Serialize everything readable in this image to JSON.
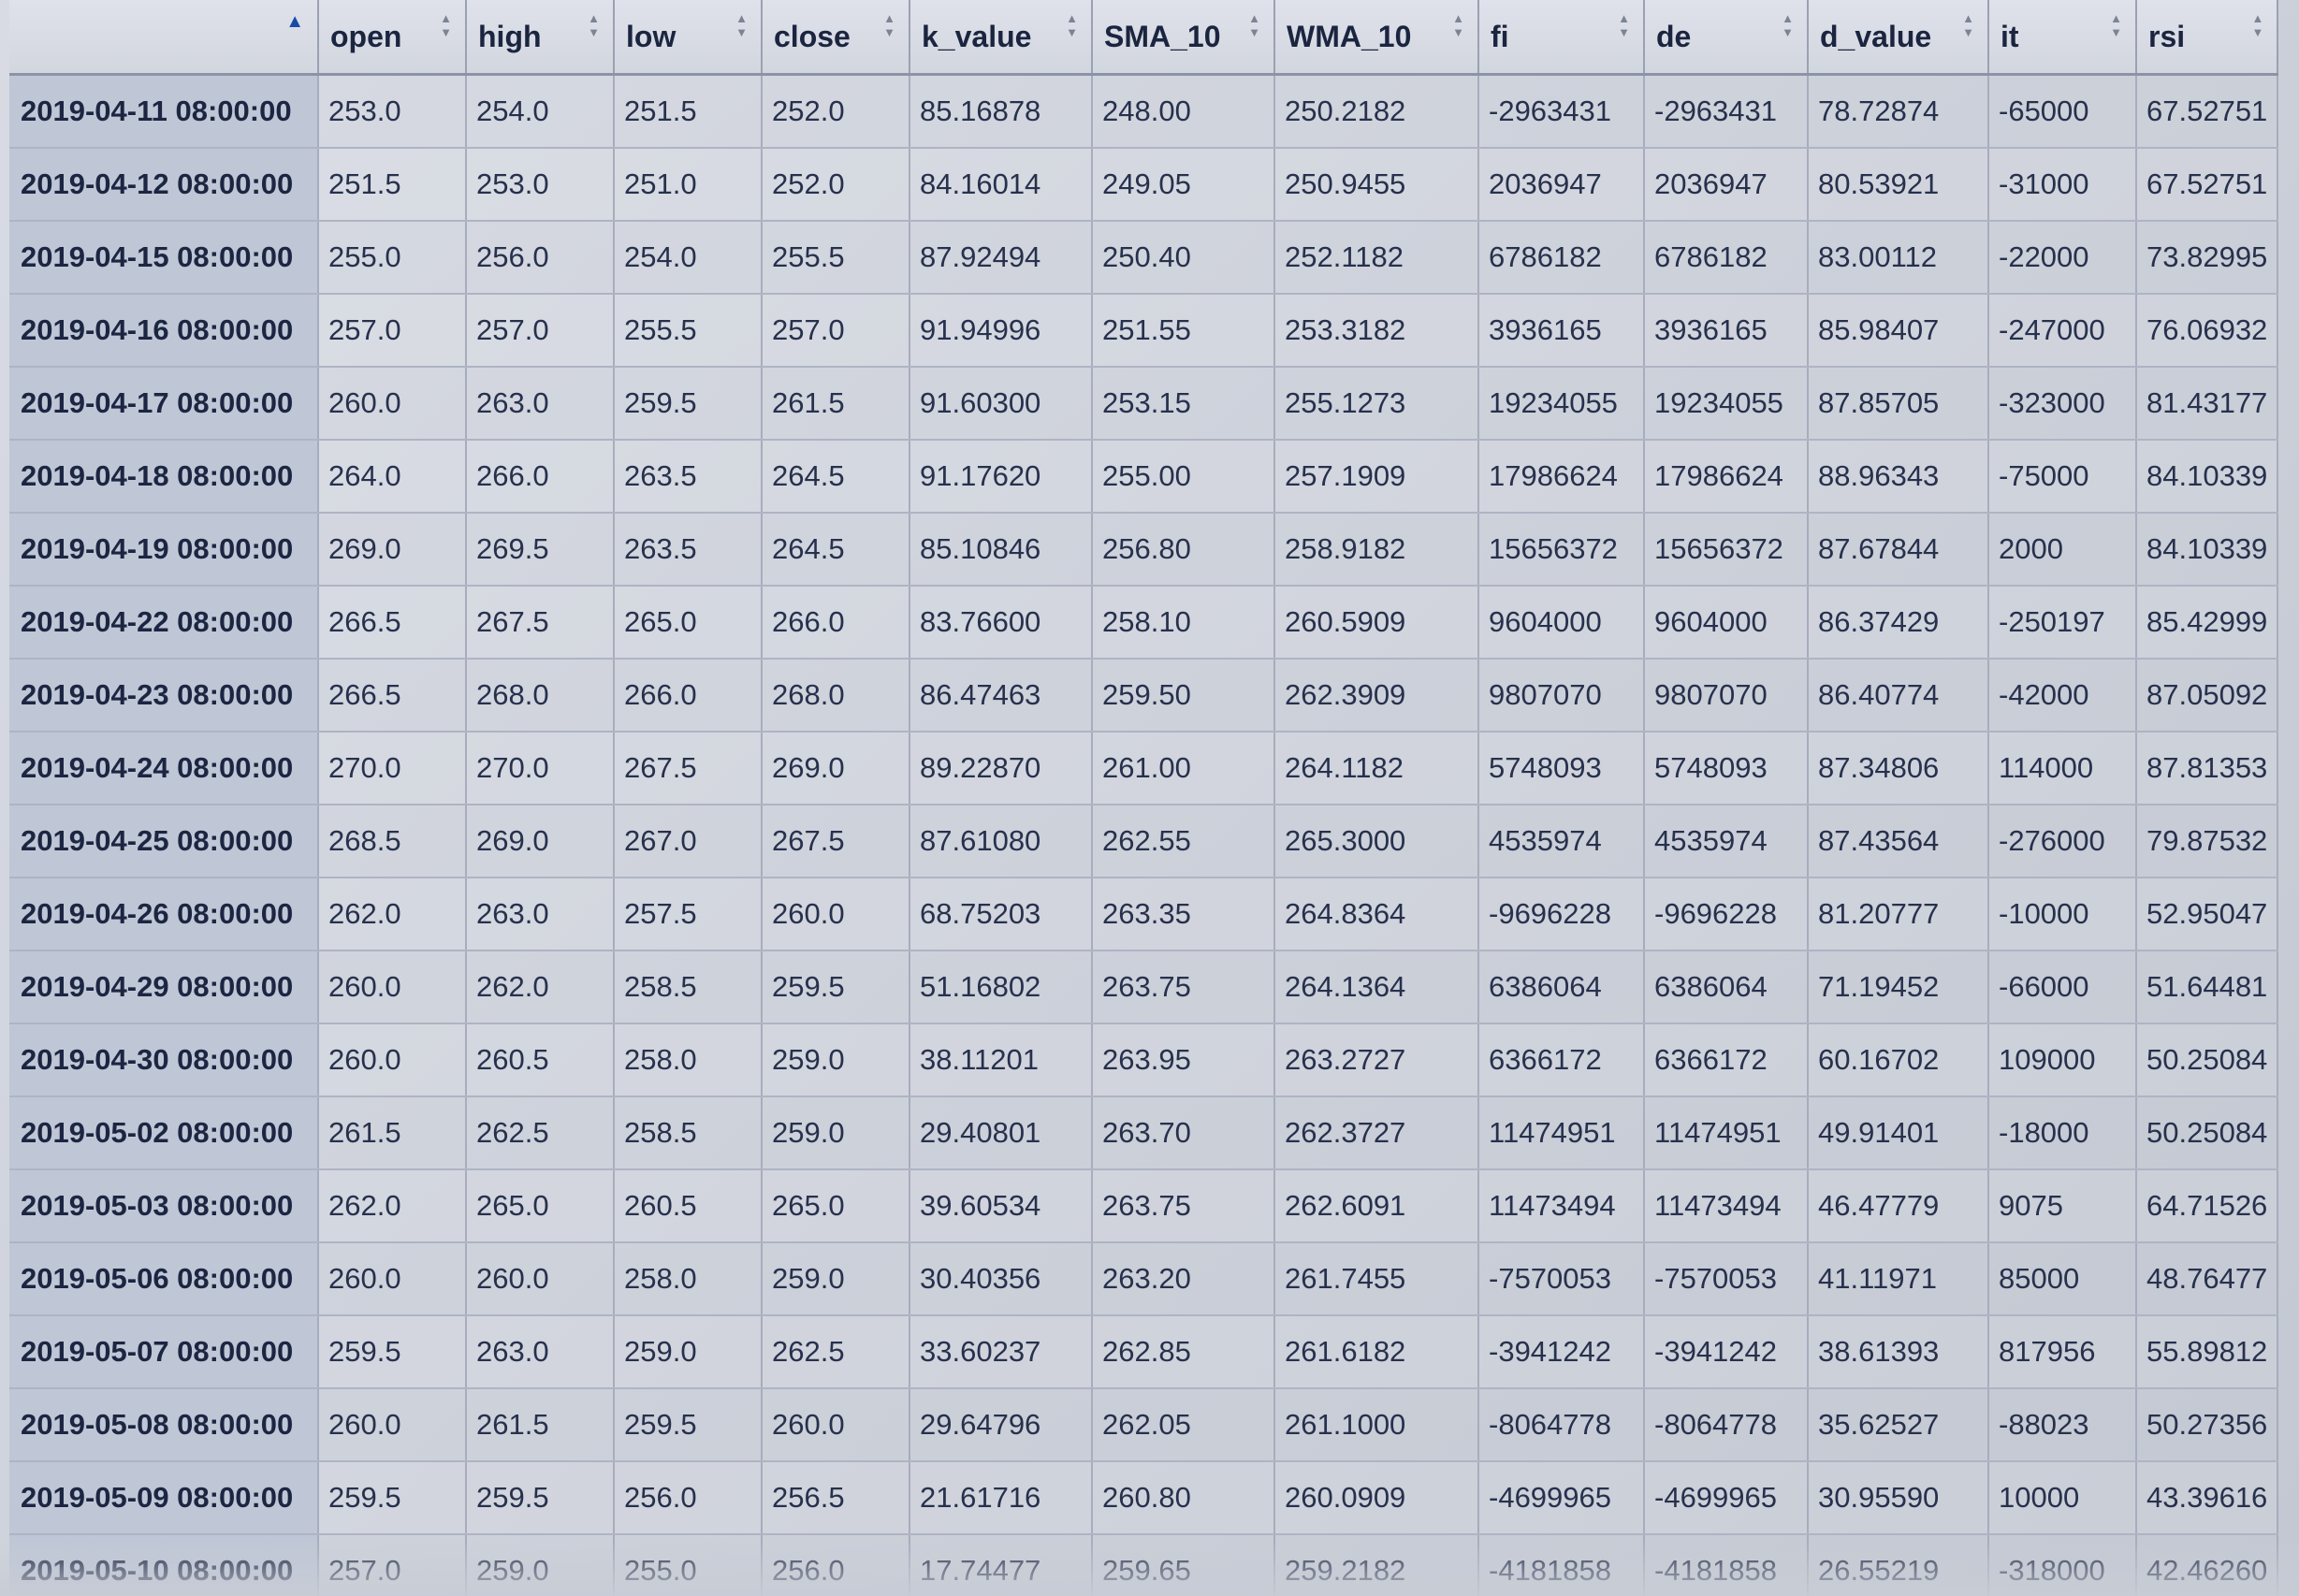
{
  "table": {
    "columns": [
      {
        "key": "date",
        "label": "",
        "sort": "asc"
      },
      {
        "key": "open",
        "label": "open",
        "sort": "none"
      },
      {
        "key": "high",
        "label": "high",
        "sort": "none"
      },
      {
        "key": "low",
        "label": "low",
        "sort": "none"
      },
      {
        "key": "close",
        "label": "close",
        "sort": "none"
      },
      {
        "key": "k_value",
        "label": "k_value",
        "sort": "none"
      },
      {
        "key": "SMA_10",
        "label": "SMA_10",
        "sort": "none"
      },
      {
        "key": "WMA_10",
        "label": "WMA_10",
        "sort": "none"
      },
      {
        "key": "fi",
        "label": "fi",
        "sort": "none"
      },
      {
        "key": "de",
        "label": "de",
        "sort": "none"
      },
      {
        "key": "d_value",
        "label": "d_value",
        "sort": "none"
      },
      {
        "key": "it",
        "label": "it",
        "sort": "none"
      },
      {
        "key": "rsi",
        "label": "rsi",
        "sort": "none"
      }
    ],
    "rows": [
      [
        "2019-04-11 08:00:00",
        "253.0",
        "254.0",
        "251.5",
        "252.0",
        "85.16878",
        "248.00",
        "250.2182",
        "-2963431",
        "-2963431",
        "78.72874",
        "-65000",
        "67.52751"
      ],
      [
        "2019-04-12 08:00:00",
        "251.5",
        "253.0",
        "251.0",
        "252.0",
        "84.16014",
        "249.05",
        "250.9455",
        "2036947",
        "2036947",
        "80.53921",
        "-31000",
        "67.52751"
      ],
      [
        "2019-04-15 08:00:00",
        "255.0",
        "256.0",
        "254.0",
        "255.5",
        "87.92494",
        "250.40",
        "252.1182",
        "6786182",
        "6786182",
        "83.00112",
        "-22000",
        "73.82995"
      ],
      [
        "2019-04-16 08:00:00",
        "257.0",
        "257.0",
        "255.5",
        "257.0",
        "91.94996",
        "251.55",
        "253.3182",
        "3936165",
        "3936165",
        "85.98407",
        "-247000",
        "76.06932"
      ],
      [
        "2019-04-17 08:00:00",
        "260.0",
        "263.0",
        "259.5",
        "261.5",
        "91.60300",
        "253.15",
        "255.1273",
        "19234055",
        "19234055",
        "87.85705",
        "-323000",
        "81.43177"
      ],
      [
        "2019-04-18 08:00:00",
        "264.0",
        "266.0",
        "263.5",
        "264.5",
        "91.17620",
        "255.00",
        "257.1909",
        "17986624",
        "17986624",
        "88.96343",
        "-75000",
        "84.10339"
      ],
      [
        "2019-04-19 08:00:00",
        "269.0",
        "269.5",
        "263.5",
        "264.5",
        "85.10846",
        "256.80",
        "258.9182",
        "15656372",
        "15656372",
        "87.67844",
        "2000",
        "84.10339"
      ],
      [
        "2019-04-22 08:00:00",
        "266.5",
        "267.5",
        "265.0",
        "266.0",
        "83.76600",
        "258.10",
        "260.5909",
        "9604000",
        "9604000",
        "86.37429",
        "-250197",
        "85.42999"
      ],
      [
        "2019-04-23 08:00:00",
        "266.5",
        "268.0",
        "266.0",
        "268.0",
        "86.47463",
        "259.50",
        "262.3909",
        "9807070",
        "9807070",
        "86.40774",
        "-42000",
        "87.05092"
      ],
      [
        "2019-04-24 08:00:00",
        "270.0",
        "270.0",
        "267.5",
        "269.0",
        "89.22870",
        "261.00",
        "264.1182",
        "5748093",
        "5748093",
        "87.34806",
        "114000",
        "87.81353"
      ],
      [
        "2019-04-25 08:00:00",
        "268.5",
        "269.0",
        "267.0",
        "267.5",
        "87.61080",
        "262.55",
        "265.3000",
        "4535974",
        "4535974",
        "87.43564",
        "-276000",
        "79.87532"
      ],
      [
        "2019-04-26 08:00:00",
        "262.0",
        "263.0",
        "257.5",
        "260.0",
        "68.75203",
        "263.35",
        "264.8364",
        "-9696228",
        "-9696228",
        "81.20777",
        "-10000",
        "52.95047"
      ],
      [
        "2019-04-29 08:00:00",
        "260.0",
        "262.0",
        "258.5",
        "259.5",
        "51.16802",
        "263.75",
        "264.1364",
        "6386064",
        "6386064",
        "71.19452",
        "-66000",
        "51.64481"
      ],
      [
        "2019-04-30 08:00:00",
        "260.0",
        "260.5",
        "258.0",
        "259.0",
        "38.11201",
        "263.95",
        "263.2727",
        "6366172",
        "6366172",
        "60.16702",
        "109000",
        "50.25084"
      ],
      [
        "2019-05-02 08:00:00",
        "261.5",
        "262.5",
        "258.5",
        "259.0",
        "29.40801",
        "263.70",
        "262.3727",
        "11474951",
        "11474951",
        "49.91401",
        "-18000",
        "50.25084"
      ],
      [
        "2019-05-03 08:00:00",
        "262.0",
        "265.0",
        "260.5",
        "265.0",
        "39.60534",
        "263.75",
        "262.6091",
        "11473494",
        "11473494",
        "46.47779",
        "9075",
        "64.71526"
      ],
      [
        "2019-05-06 08:00:00",
        "260.0",
        "260.0",
        "258.0",
        "259.0",
        "30.40356",
        "263.20",
        "261.7455",
        "-7570053",
        "-7570053",
        "41.11971",
        "85000",
        "48.76477"
      ],
      [
        "2019-05-07 08:00:00",
        "259.5",
        "263.0",
        "259.0",
        "262.5",
        "33.60237",
        "262.85",
        "261.6182",
        "-3941242",
        "-3941242",
        "38.61393",
        "817956",
        "55.89812"
      ],
      [
        "2019-05-08 08:00:00",
        "260.0",
        "261.5",
        "259.5",
        "260.0",
        "29.64796",
        "262.05",
        "261.1000",
        "-8064778",
        "-8064778",
        "35.62527",
        "-88023",
        "50.27356"
      ],
      [
        "2019-05-09 08:00:00",
        "259.5",
        "259.5",
        "256.0",
        "256.5",
        "21.61716",
        "260.80",
        "260.0909",
        "-4699965",
        "-4699965",
        "30.95590",
        "10000",
        "43.39616"
      ],
      [
        "2019-05-10 08:00:00",
        "257.0",
        "259.0",
        "255.0",
        "256.0",
        "17.74477",
        "259.65",
        "259.2182",
        "-4181858",
        "-4181858",
        "26.55219",
        "-318000",
        "42.46260"
      ]
    ]
  }
}
